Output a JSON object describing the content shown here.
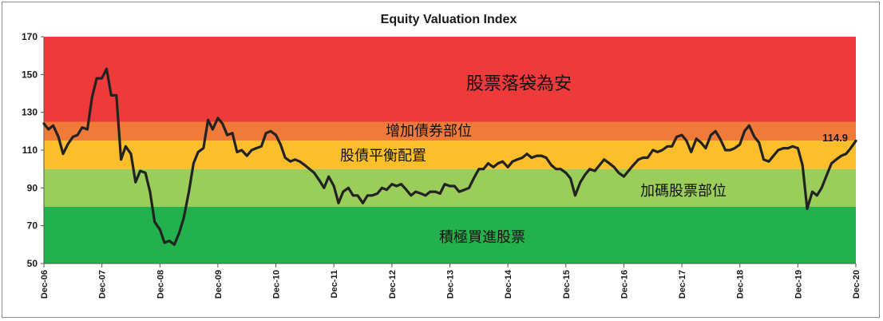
{
  "chart_data": {
    "type": "line",
    "title": "Equity Valuation Index",
    "xlabel": "",
    "ylabel": "",
    "ylim": [
      50,
      170
    ],
    "yticks": [
      "50",
      "70",
      "90",
      "110",
      "130",
      "150",
      "170"
    ],
    "xticks": [
      "Dec-06",
      "Dec-07",
      "Dec-08",
      "Dec-09",
      "Dec-10",
      "Dec-11",
      "Dec-12",
      "Dec-13",
      "Dec-14",
      "Dec-15",
      "Dec-16",
      "Dec-17",
      "Dec-18",
      "Dec-19",
      "Dec-20"
    ],
    "bands": [
      {
        "from": 50,
        "to": 80,
        "color": "#22b14c",
        "label": "積極買進股票"
      },
      {
        "from": 80,
        "to": 100,
        "color": "#9acd5a",
        "label": "加碼股票部位"
      },
      {
        "from": 100,
        "to": 115,
        "color": "#fcbf2b",
        "label": "股債平衡配置"
      },
      {
        "from": 115,
        "to": 125,
        "color": "#f07a3a",
        "label": "增加債券部位"
      },
      {
        "from": 125,
        "to": 170,
        "color": "#ee3a3a",
        "label": "股票落袋為安"
      }
    ],
    "end_label": "114.9",
    "line_color": "#222222",
    "series": [
      {
        "name": "",
        "x": [
          2006.92,
          2007.0,
          2007.08,
          2007.17,
          2007.25,
          2007.33,
          2007.42,
          2007.5,
          2007.58,
          2007.67,
          2007.75,
          2007.83,
          2007.92,
          2008.0,
          2008.08,
          2008.17,
          2008.25,
          2008.33,
          2008.42,
          2008.5,
          2008.58,
          2008.67,
          2008.75,
          2008.83,
          2008.92,
          2009.0,
          2009.08,
          2009.17,
          2009.25,
          2009.33,
          2009.42,
          2009.5,
          2009.58,
          2009.67,
          2009.75,
          2009.83,
          2009.92,
          2010.0,
          2010.08,
          2010.17,
          2010.25,
          2010.33,
          2010.42,
          2010.5,
          2010.58,
          2010.67,
          2010.75,
          2010.83,
          2010.92,
          2011.0,
          2011.08,
          2011.17,
          2011.25,
          2011.33,
          2011.42,
          2011.5,
          2011.58,
          2011.67,
          2011.75,
          2011.83,
          2011.92,
          2012.0,
          2012.08,
          2012.17,
          2012.25,
          2012.33,
          2012.42,
          2012.5,
          2012.58,
          2012.67,
          2012.75,
          2012.83,
          2012.92,
          2013.0,
          2013.08,
          2013.17,
          2013.25,
          2013.33,
          2013.42,
          2013.5,
          2013.58,
          2013.67,
          2013.75,
          2013.83,
          2013.92,
          2014.0,
          2014.08,
          2014.17,
          2014.25,
          2014.33,
          2014.42,
          2014.5,
          2014.58,
          2014.67,
          2014.75,
          2014.83,
          2014.92,
          2015.0,
          2015.08,
          2015.17,
          2015.25,
          2015.33,
          2015.42,
          2015.5,
          2015.58,
          2015.67,
          2015.75,
          2015.83,
          2015.92,
          2016.0,
          2016.08,
          2016.17,
          2016.25,
          2016.33,
          2016.42,
          2016.5,
          2016.58,
          2016.67,
          2016.75,
          2016.83,
          2016.92,
          2017.0,
          2017.08,
          2017.17,
          2017.25,
          2017.33,
          2017.42,
          2017.5,
          2017.58,
          2017.67,
          2017.75,
          2017.83,
          2017.92,
          2018.0,
          2018.08,
          2018.17,
          2018.25,
          2018.33,
          2018.42,
          2018.5,
          2018.58,
          2018.67,
          2018.75,
          2018.83,
          2018.92,
          2019.0,
          2019.08,
          2019.17,
          2019.25,
          2019.33,
          2019.42,
          2019.5,
          2019.58,
          2019.67,
          2019.75,
          2019.83,
          2019.92,
          2020.0,
          2020.08,
          2020.17,
          2020.25,
          2020.33,
          2020.42,
          2020.5,
          2020.58,
          2020.67,
          2020.75,
          2020.83,
          2020.92
        ],
        "y": [
          124,
          121,
          123,
          117,
          108,
          113,
          117,
          118,
          122,
          121,
          138,
          148,
          148,
          153,
          139,
          139,
          105,
          112,
          108,
          93,
          99,
          98,
          88,
          72,
          68,
          61,
          62,
          60,
          66,
          74,
          88,
          103,
          109,
          111,
          126,
          121,
          127,
          124,
          118,
          119,
          109,
          110,
          107,
          110,
          111,
          112,
          119,
          120,
          118,
          113,
          106,
          104,
          105,
          104,
          102,
          100,
          98,
          94,
          90,
          96,
          91,
          82,
          88,
          90,
          86,
          86,
          82,
          86,
          86,
          87,
          90,
          89,
          92,
          91,
          92,
          89,
          86,
          88,
          87,
          86,
          88,
          88,
          87,
          92,
          91,
          91,
          88,
          89,
          90,
          95,
          100,
          100,
          103,
          101,
          103,
          104,
          101,
          104,
          105,
          106,
          108,
          106,
          107,
          107,
          106,
          102,
          100,
          100,
          98,
          95,
          86,
          93,
          97,
          100,
          99,
          102,
          105,
          103,
          101,
          98,
          96,
          99,
          102,
          105,
          106,
          106,
          110,
          109,
          110,
          112,
          112,
          117,
          118,
          115,
          109,
          116,
          114,
          111,
          118,
          120,
          116,
          110,
          110,
          111,
          113,
          120,
          123,
          117,
          114,
          105,
          104,
          107,
          110,
          111,
          111,
          112,
          111,
          102,
          79,
          88,
          86,
          90,
          97,
          103,
          105,
          107,
          108,
          111,
          114.9
        ]
      }
    ]
  }
}
